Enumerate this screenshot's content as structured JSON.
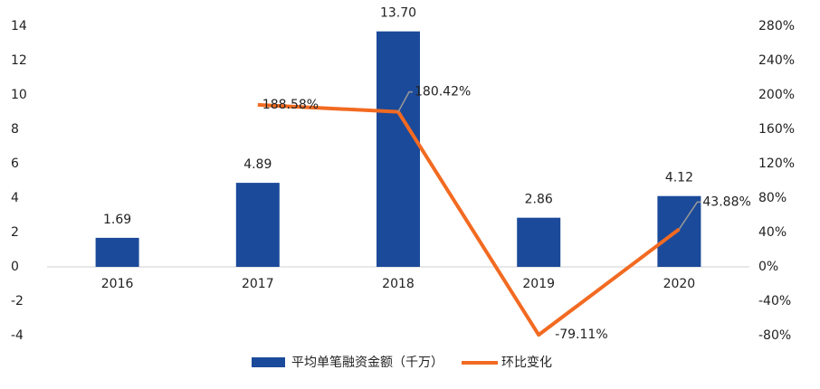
{
  "chart_data": {
    "type": "bar",
    "categories": [
      "2016",
      "2017",
      "2018",
      "2019",
      "2020"
    ],
    "series": [
      {
        "name": "平均单笔融资金额（千万）",
        "type": "bar",
        "color": "#1c4a9a",
        "values": [
          1.69,
          4.89,
          13.7,
          2.86,
          4.12
        ],
        "value_labels": [
          "1.69",
          "4.89",
          "13.70",
          "2.86",
          "4.12"
        ]
      },
      {
        "name": "环比变化",
        "type": "line",
        "axis": "y2",
        "color": "#f26a21",
        "values": [
          null,
          188.58,
          180.42,
          -79.11,
          43.88
        ],
        "value_labels": [
          null,
          "188.58%",
          "180.42%",
          "-79.11%",
          "43.88%"
        ]
      }
    ],
    "ylim": [
      -4,
      14
    ],
    "yticks": [
      -4,
      -2,
      0,
      2,
      4,
      6,
      8,
      10,
      12,
      14
    ],
    "y2lim": [
      -80,
      280
    ],
    "y2ticks": [
      {
        "value": -80,
        "label": "-80%"
      },
      {
        "value": -40,
        "label": "-40%"
      },
      {
        "value": 0,
        "label": "0%"
      },
      {
        "value": 40,
        "label": "40%"
      },
      {
        "value": 80,
        "label": "80%"
      },
      {
        "value": 120,
        "label": "120%"
      },
      {
        "value": 160,
        "label": "160%"
      },
      {
        "value": 200,
        "label": "200%"
      },
      {
        "value": 240,
        "label": "240%"
      },
      {
        "value": 280,
        "label": "280%"
      }
    ],
    "grid": false,
    "legend": "bottom"
  }
}
